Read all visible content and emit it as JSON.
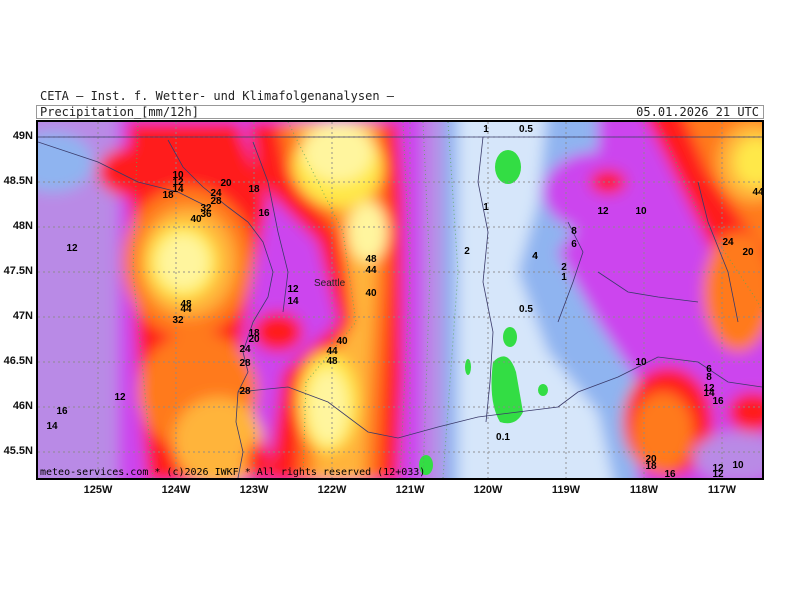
{
  "header": {
    "organization": "CETA — Inst. f. Wetter- und Klimafolgenanalysen —",
    "variable": "Precipitation_[mm/12h]",
    "valid_time": "05.01.2026 21 UTC"
  },
  "footer": "meteo-services.com * (c)2026 IWKF * All rights reserved (12+033)",
  "lat_labels": [
    "49N",
    "48.5N",
    "48N",
    "47.5N",
    "47N",
    "46.5N",
    "46N",
    "45.5N"
  ],
  "lon_labels": [
    "125W",
    "124W",
    "123W",
    "122W",
    "121W",
    "120W",
    "119W",
    "118W",
    "117W"
  ],
  "city": "Seattle",
  "colors": {
    "lightblue": "#d6e6fa",
    "blue": "#8fb4f0",
    "violet": "#b98ae6",
    "magenta": "#cc44ee",
    "red": "#ff1a1a",
    "orange": "#ff7a1a",
    "amber": "#ffb43a",
    "yellow": "#ffe84a",
    "paleyellow": "#fff59e",
    "green": "#33dd44"
  },
  "contour_labels": [
    "1",
    "0.5",
    "10",
    "12",
    "14",
    "18",
    "20",
    "24",
    "28",
    "32",
    "36",
    "40",
    "48",
    "44",
    "16",
    "2",
    "4",
    "8",
    "6",
    "0.1",
    "10",
    "12"
  ]
}
